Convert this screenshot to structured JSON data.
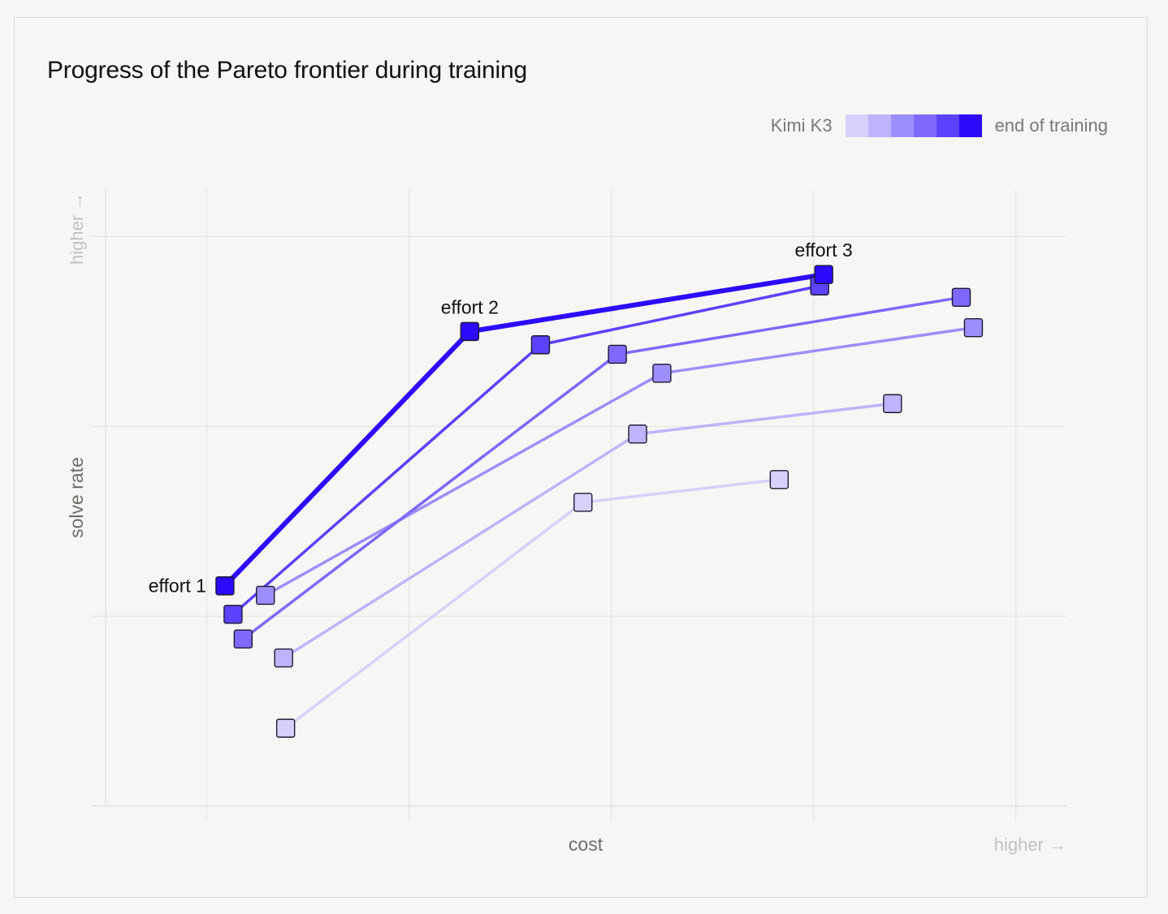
{
  "chart_data": {
    "type": "line",
    "title": "Progress of the Pareto frontier during training",
    "xlabel": "cost",
    "ylabel": "solve rate",
    "x_higher_label": "higher →",
    "y_higher_label": "higher →",
    "xlim": [
      0,
      4.75
    ],
    "ylim": [
      0,
      3.25
    ],
    "grid": true,
    "legend": {
      "position": "top-right",
      "start_label": "Kimi K3",
      "end_label": "end of training",
      "colors": [
        "#d6d1fa",
        "#bdb4fb",
        "#9d8ffb",
        "#7e69fc",
        "#5b42fd",
        "#2c0bfd"
      ]
    },
    "series": [
      {
        "color": "#d6d1fa",
        "points": [
          [
            0.89,
            0.41
          ],
          [
            2.36,
            1.6
          ],
          [
            3.33,
            1.72
          ]
        ]
      },
      {
        "color": "#bdb4fb",
        "points": [
          [
            0.88,
            0.78
          ],
          [
            2.63,
            1.96
          ],
          [
            3.89,
            2.12
          ]
        ]
      },
      {
        "color": "#9d8ffb",
        "points": [
          [
            0.79,
            1.11
          ],
          [
            2.75,
            2.28
          ],
          [
            4.29,
            2.52
          ]
        ]
      },
      {
        "color": "#7e69fc",
        "points": [
          [
            0.68,
            0.88
          ],
          [
            2.53,
            2.38
          ],
          [
            4.23,
            2.68
          ]
        ]
      },
      {
        "color": "#5b42fd",
        "points": [
          [
            0.63,
            1.01
          ],
          [
            2.15,
            2.43
          ],
          [
            3.53,
            2.74
          ]
        ]
      },
      {
        "color": "#2c0bfd",
        "points": [
          [
            0.59,
            1.16
          ],
          [
            1.8,
            2.5
          ],
          [
            3.55,
            2.8
          ]
        ]
      }
    ],
    "annotations": [
      {
        "text": "effort 1",
        "x": 0.59,
        "y": 1.16,
        "anchor": "end"
      },
      {
        "text": "effort 2",
        "x": 1.8,
        "y": 2.5,
        "anchor": "middle"
      },
      {
        "text": "effort 3",
        "x": 3.55,
        "y": 2.8,
        "anchor": "middle"
      }
    ]
  }
}
